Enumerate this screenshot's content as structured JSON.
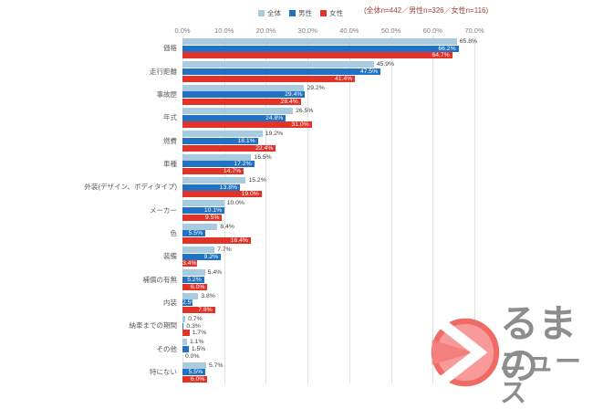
{
  "legend": [
    {
      "label": "全体",
      "color": "#a8cbe0"
    },
    {
      "label": "男性",
      "color": "#2172c2"
    },
    {
      "label": "女性",
      "color": "#e23329"
    }
  ],
  "note": "(全体n=442／男性n=326／女性n=116)",
  "chart_data": {
    "type": "bar",
    "orientation": "horizontal",
    "title": "",
    "categories": [
      "価格",
      "走行距離",
      "事故歴",
      "年式",
      "燃費",
      "車種",
      "外装(デザイン、ボディタイプ)",
      "メーカー",
      "色",
      "装備",
      "補償の有無",
      "内装",
      "納車までの期間",
      "その他",
      "特にない"
    ],
    "series": [
      {
        "name": "全体",
        "color": "#a8cbe0",
        "values": [
          65.8,
          45.9,
          29.2,
          26.5,
          19.2,
          16.5,
          15.2,
          10.0,
          8.4,
          7.7,
          5.4,
          3.8,
          0.7,
          1.1,
          5.7
        ]
      },
      {
        "name": "男性",
        "color": "#2172c2",
        "values": [
          66.2,
          47.5,
          29.4,
          24.8,
          18.1,
          17.2,
          13.8,
          10.1,
          5.5,
          9.2,
          5.2,
          2.5,
          0.3,
          1.5,
          5.5
        ]
      },
      {
        "name": "女性",
        "color": "#e23329",
        "values": [
          64.7,
          41.4,
          28.4,
          31.0,
          22.4,
          14.7,
          19.0,
          9.5,
          16.4,
          3.4,
          6.0,
          7.8,
          1.7,
          0.0,
          6.0
        ]
      }
    ],
    "x_axis": {
      "ticks": [
        "0.0%",
        "10.0%",
        "20.0%",
        "30.0%",
        "40.0%",
        "50.0%",
        "60.0%",
        "70.0%"
      ],
      "min": 0,
      "max": 70
    },
    "grid": true,
    "legend_position": "top",
    "value_labels": "shown, one decimal, percent"
  },
  "logo": {
    "circle_char": "く",
    "line1": "るまの",
    "line2": "ニュース"
  }
}
